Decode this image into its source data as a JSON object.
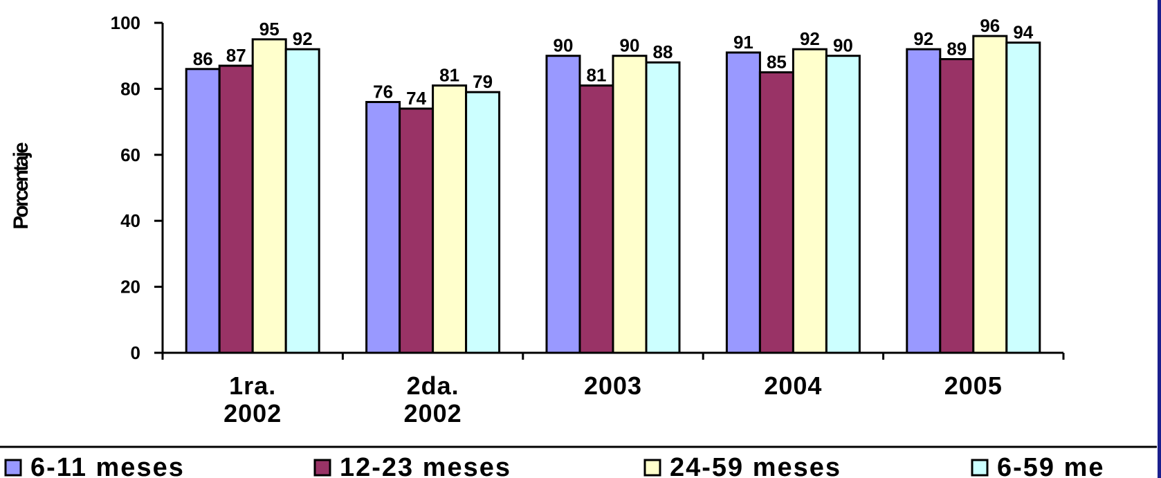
{
  "chart_data": {
    "type": "bar",
    "ylabel": "Porcentaje",
    "ylim": [
      0,
      100
    ],
    "yticks": [
      "0",
      "20",
      "40",
      "60",
      "80",
      "100"
    ],
    "categories": [
      [
        "1ra.",
        "2002"
      ],
      [
        "2da.",
        "2002"
      ],
      [
        "2003"
      ],
      [
        "2004"
      ],
      [
        "2005"
      ]
    ],
    "series": [
      {
        "name": "6-11 meses",
        "color": "#9999ff",
        "values": [
          86,
          76,
          90,
          91,
          92
        ],
        "labels": [
          "86",
          "76",
          "90",
          "91",
          "92"
        ]
      },
      {
        "name": "12-23 meses",
        "color": "#993366",
        "values": [
          87,
          74,
          81,
          85,
          89
        ],
        "labels": [
          "87",
          "74",
          "81",
          "85",
          "89"
        ]
      },
      {
        "name": "24-59 meses",
        "color": "#ffffcc",
        "values": [
          95,
          81,
          90,
          92,
          96
        ],
        "labels": [
          "95",
          "81",
          "90",
          "92",
          "96"
        ]
      },
      {
        "name": "6-59 me",
        "color": "#ccffff",
        "values": [
          92,
          79,
          88,
          90,
          94
        ],
        "labels": [
          "92",
          "79",
          "88",
          "90",
          "94"
        ]
      }
    ],
    "grid": false,
    "legend_position": "bottom"
  },
  "colors": {
    "frame": "#1b1f8e"
  }
}
